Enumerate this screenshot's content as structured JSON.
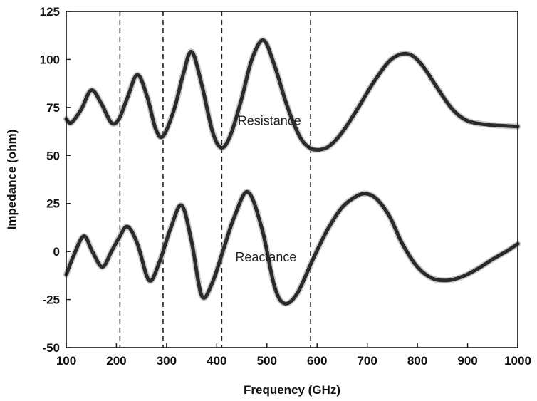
{
  "chart_data": {
    "type": "line",
    "title": "",
    "xlabel": "Frequency (GHz)",
    "ylabel": "Impedance (ohm)",
    "xlim": [
      100,
      1000
    ],
    "ylim": [
      -50,
      125
    ],
    "xticks": [
      100,
      200,
      300,
      400,
      500,
      600,
      700,
      800,
      900,
      1000
    ],
    "yticks": [
      -50,
      -25,
      0,
      25,
      50,
      75,
      100,
      125
    ],
    "grid": false,
    "legend": "none",
    "vlines": [
      207,
      293,
      410,
      587
    ],
    "annotations": [
      {
        "text": "Resistance",
        "x": 505,
        "y": 68
      },
      {
        "text": "Reactance",
        "x": 498,
        "y": -3
      }
    ],
    "series": [
      {
        "name": "Resistance",
        "color": "#2a2a2a",
        "x": [
          100,
          110,
          130,
          150,
          170,
          190,
          205,
          222,
          242,
          262,
          278,
          293,
          315,
          333,
          350,
          370,
          392,
          410,
          428,
          450,
          470,
          493,
          515,
          540,
          565,
          585,
          605,
          625,
          650,
          680,
          710,
          740,
          760,
          778,
          795,
          815,
          840,
          870,
          900,
          940,
          970,
          1000
        ],
        "values": [
          69,
          67,
          74,
          84,
          77,
          67,
          69,
          80,
          92,
          80,
          64,
          60,
          74,
          92,
          104,
          87,
          62,
          54,
          61,
          80,
          100,
          110,
          97,
          76,
          60,
          54,
          53,
          55,
          62,
          74,
          87,
          98,
          102,
          103,
          101,
          95,
          85,
          74,
          68,
          66,
          65.5,
          65
        ]
      },
      {
        "name": "Reactance",
        "color": "#2a2a2a",
        "x": [
          100,
          115,
          135,
          152,
          172,
          190,
          205,
          222,
          242,
          265,
          285,
          308,
          330,
          350,
          370,
          390,
          412,
          435,
          462,
          490,
          515,
          535,
          560,
          590,
          620,
          650,
          680,
          700,
          720,
          745,
          770,
          800,
          830,
          860,
          890,
          920,
          950,
          980,
          1000
        ],
        "values": [
          -12,
          -2,
          8,
          0,
          -8,
          0,
          7,
          13,
          4,
          -15,
          -6,
          12,
          24,
          5,
          -23,
          -17,
          0,
          18,
          31,
          12,
          -18,
          -27,
          -22,
          -5,
          11,
          23,
          29,
          30,
          27,
          18,
          4,
          -8,
          -14,
          -15,
          -13,
          -9,
          -4,
          0.5,
          4
        ]
      }
    ]
  }
}
